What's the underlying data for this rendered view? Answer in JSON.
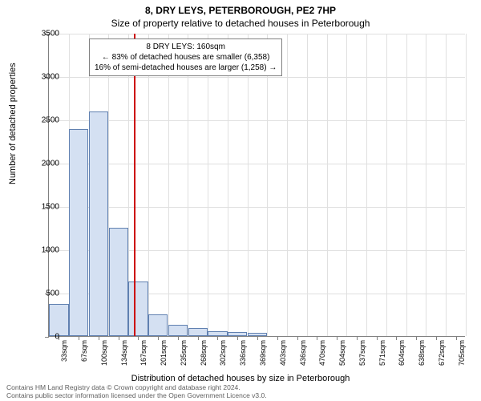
{
  "title_line1": "8, DRY LEYS, PETERBOROUGH, PE2 7HP",
  "title_line2": "Size of property relative to detached houses in Peterborough",
  "y_axis_label": "Number of detached properties",
  "x_axis_label": "Distribution of detached houses by size in Peterborough",
  "chart": {
    "type": "histogram",
    "ylim": [
      0,
      3500
    ],
    "ytick_step": 500,
    "background_color": "#ffffff",
    "grid_color": "#e0e0e0",
    "axis_color": "#808080",
    "bar_fill": "#d4e0f2",
    "bar_border": "#6080b0",
    "reference_line_color": "#cc0000",
    "reference_value_sqm": 160,
    "x_categories": [
      "33sqm",
      "67sqm",
      "100sqm",
      "134sqm",
      "167sqm",
      "201sqm",
      "235sqm",
      "268sqm",
      "302sqm",
      "336sqm",
      "369sqm",
      "403sqm",
      "436sqm",
      "470sqm",
      "504sqm",
      "537sqm",
      "571sqm",
      "604sqm",
      "638sqm",
      "672sqm",
      "705sqm"
    ],
    "values": [
      370,
      2390,
      2590,
      1250,
      630,
      250,
      130,
      90,
      60,
      50,
      40,
      0,
      0,
      0,
      0,
      0,
      0,
      0,
      0,
      0,
      0
    ],
    "y_ticks": [
      0,
      500,
      1000,
      1500,
      2000,
      2500,
      3000,
      3500
    ]
  },
  "annotation": {
    "line1": "8 DRY LEYS: 160sqm",
    "line2": "← 83% of detached houses are smaller (6,358)",
    "line3": "16% of semi-detached houses are larger (1,258) →"
  },
  "footer_line1": "Contains HM Land Registry data © Crown copyright and database right 2024.",
  "footer_line2": "Contains public sector information licensed under the Open Government Licence v3.0."
}
